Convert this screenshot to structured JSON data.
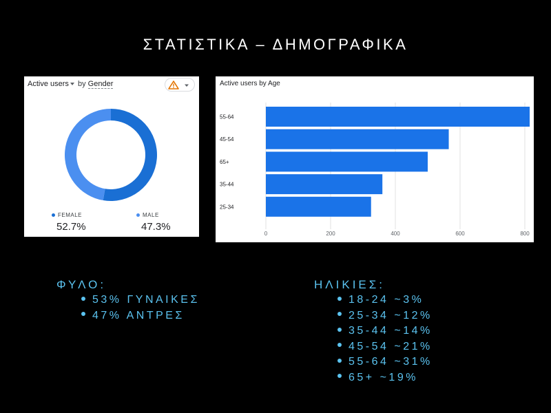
{
  "title": "ΣΤΑΤΙΣΤΙΚΑ – ΔΗΜΟΓΡΑΦΙΚΑ",
  "gender_card": {
    "metric": "Active users",
    "by": "by",
    "dimension": "Gender"
  },
  "age_card": {
    "title": "Active users by Age"
  },
  "colors": {
    "female": "#1a6fd4",
    "male": "#4b8ff0",
    "bar": "#1a73e8",
    "warning": "#e37400"
  },
  "icons": {
    "warning": "warning-triangle-icon",
    "dropdown": "caret-down-icon"
  },
  "chart_data": [
    {
      "type": "pie",
      "donut": true,
      "categories": [
        "FEMALE",
        "MALE"
      ],
      "values": [
        52.7,
        47.3
      ],
      "value_labels": [
        "52.7%",
        "47.3%"
      ],
      "legend": "bottom"
    },
    {
      "type": "bar",
      "orientation": "horizontal",
      "categories": [
        "55-64",
        "45-54",
        "65+",
        "35-44",
        "25-34"
      ],
      "values": [
        815,
        565,
        500,
        360,
        325
      ],
      "title": "Active users by Age",
      "xlim": [
        0,
        800
      ],
      "xticks": [
        "0",
        "200",
        "400",
        "600",
        "800"
      ],
      "grid": true
    }
  ],
  "summary": {
    "gender": {
      "heading": "ΦΥΛΟ:",
      "items": [
        "53% ΓΥΝΑΙΚΕΣ",
        "47% ΑΝΤΡΕΣ"
      ]
    },
    "age": {
      "heading": "ΗΛΙΚΙΕΣ:",
      "items": [
        "18-24 ~3%",
        "25-34 ~12%",
        "35-44 ~14%",
        "45-54 ~21%",
        "55-64 ~31%",
        "65+ ~19%"
      ]
    }
  }
}
